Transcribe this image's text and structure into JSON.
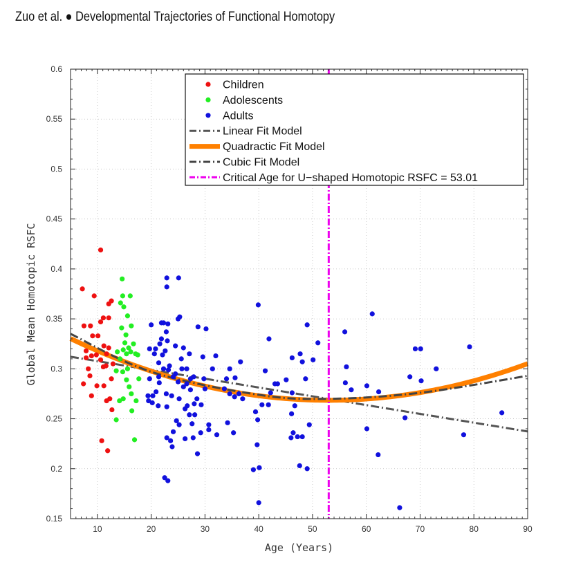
{
  "header": {
    "authors": "Zuo et al.",
    "bullet": "●",
    "title": "Developmental Trajectories of Functional Homotopy"
  },
  "chart_data": {
    "type": "scatter",
    "xlabel": "Age (Years)",
    "ylabel": "Global Mean Homotopic RSFC",
    "xlim": [
      5,
      90
    ],
    "ylim": [
      0.15,
      0.6
    ],
    "xticks": [
      10,
      20,
      30,
      40,
      50,
      60,
      70,
      80,
      90
    ],
    "yticks": [
      0.15,
      0.2,
      0.25,
      0.3,
      0.35,
      0.4,
      0.45,
      0.5,
      0.55,
      0.6
    ],
    "ytick_labels": [
      "0.15",
      "0.2",
      "0.25",
      "0.3",
      "0.35",
      "0.4",
      "0.45",
      "0.5",
      "0.55",
      "0.6"
    ],
    "grid": true,
    "legend_position": "top-right",
    "colors": {
      "children": "#ee1111",
      "adolescents": "#22ee22",
      "adults": "#1111dd",
      "linear": "#555555",
      "quadratic": "#ff8000",
      "cubic": "#444444",
      "critical": "#ee00ee"
    },
    "series": [
      {
        "name": "Children",
        "points": [
          [
            7.2,
            0.38
          ],
          [
            10.6,
            0.419
          ],
          [
            9.4,
            0.373
          ],
          [
            12.6,
            0.368
          ],
          [
            11.1,
            0.351
          ],
          [
            12.1,
            0.365
          ],
          [
            7.5,
            0.343
          ],
          [
            8.7,
            0.343
          ],
          [
            10.6,
            0.347
          ],
          [
            12.1,
            0.351
          ],
          [
            10.1,
            0.333
          ],
          [
            9.1,
            0.333
          ],
          [
            11.2,
            0.323
          ],
          [
            12.1,
            0.321
          ],
          [
            7.9,
            0.318
          ],
          [
            9.8,
            0.314
          ],
          [
            11.7,
            0.315
          ],
          [
            8.9,
            0.313
          ],
          [
            7.9,
            0.311
          ],
          [
            12.9,
            0.305
          ],
          [
            11.1,
            0.302
          ],
          [
            10.6,
            0.309
          ],
          [
            11.6,
            0.303
          ],
          [
            8.3,
            0.3
          ],
          [
            12.6,
            0.29
          ],
          [
            8.6,
            0.293
          ],
          [
            11.2,
            0.283
          ],
          [
            7.4,
            0.285
          ],
          [
            9.9,
            0.283
          ],
          [
            8.9,
            0.273
          ],
          [
            11.7,
            0.268
          ],
          [
            12.3,
            0.27
          ],
          [
            12.7,
            0.259
          ],
          [
            10.8,
            0.228
          ],
          [
            11.9,
            0.218
          ]
        ]
      },
      {
        "name": "Adolescents",
        "points": [
          [
            14.6,
            0.39
          ],
          [
            16.1,
            0.373
          ],
          [
            14.7,
            0.373
          ],
          [
            14.3,
            0.366
          ],
          [
            14.9,
            0.362
          ],
          [
            15.6,
            0.353
          ],
          [
            16.3,
            0.343
          ],
          [
            14.5,
            0.341
          ],
          [
            15.3,
            0.334
          ],
          [
            16.7,
            0.325
          ],
          [
            15.1,
            0.326
          ],
          [
            15.8,
            0.321
          ],
          [
            14.8,
            0.319
          ],
          [
            16.2,
            0.317
          ],
          [
            17.1,
            0.315
          ],
          [
            15.4,
            0.315
          ],
          [
            13.7,
            0.317
          ],
          [
            17.5,
            0.314
          ],
          [
            14.2,
            0.31
          ],
          [
            15.6,
            0.3
          ],
          [
            13.5,
            0.298
          ],
          [
            14.7,
            0.297
          ],
          [
            15.4,
            0.289
          ],
          [
            17.7,
            0.29
          ],
          [
            15.9,
            0.282
          ],
          [
            16.3,
            0.275
          ],
          [
            14.8,
            0.27
          ],
          [
            14.1,
            0.268
          ],
          [
            17.2,
            0.268
          ],
          [
            16.4,
            0.258
          ],
          [
            13.5,
            0.249
          ],
          [
            16.9,
            0.229
          ]
        ]
      },
      {
        "name": "Adults",
        "points": [
          [
            22.9,
            0.391
          ],
          [
            25.1,
            0.391
          ],
          [
            22.9,
            0.382
          ],
          [
            25.3,
            0.352
          ],
          [
            25.0,
            0.35
          ],
          [
            21.9,
            0.346
          ],
          [
            20.0,
            0.344
          ],
          [
            22.3,
            0.346
          ],
          [
            23.1,
            0.345
          ],
          [
            22.8,
            0.337
          ],
          [
            21.9,
            0.33
          ],
          [
            23.0,
            0.328
          ],
          [
            24.5,
            0.323
          ],
          [
            21.6,
            0.325
          ],
          [
            22.6,
            0.318
          ],
          [
            19.7,
            0.32
          ],
          [
            20.8,
            0.32
          ],
          [
            20.6,
            0.315
          ],
          [
            22.1,
            0.314
          ],
          [
            26.0,
            0.321
          ],
          [
            25.6,
            0.31
          ],
          [
            27.1,
            0.315
          ],
          [
            21.4,
            0.306
          ],
          [
            23.4,
            0.303
          ],
          [
            22.3,
            0.3
          ],
          [
            23.2,
            0.299
          ],
          [
            24.5,
            0.295
          ],
          [
            25.7,
            0.3
          ],
          [
            26.6,
            0.3
          ],
          [
            24.1,
            0.292
          ],
          [
            25.0,
            0.287
          ],
          [
            26.6,
            0.285
          ],
          [
            27.9,
            0.292
          ],
          [
            27.3,
            0.29
          ],
          [
            29.8,
            0.29
          ],
          [
            19.7,
            0.29
          ],
          [
            21.4,
            0.292
          ],
          [
            21.5,
            0.286
          ],
          [
            26.0,
            0.282
          ],
          [
            27.3,
            0.279
          ],
          [
            30.0,
            0.28
          ],
          [
            22.8,
            0.275
          ],
          [
            20.9,
            0.277
          ],
          [
            20.3,
            0.273
          ],
          [
            19.4,
            0.273
          ],
          [
            23.8,
            0.273
          ],
          [
            25.2,
            0.27
          ],
          [
            28.5,
            0.27
          ],
          [
            20.2,
            0.266
          ],
          [
            21.3,
            0.263
          ],
          [
            19.5,
            0.268
          ],
          [
            22.9,
            0.262
          ],
          [
            26.7,
            0.263
          ],
          [
            28.0,
            0.265
          ],
          [
            29.3,
            0.264
          ],
          [
            26.3,
            0.26
          ],
          [
            27.1,
            0.254
          ],
          [
            28.1,
            0.254
          ],
          [
            24.7,
            0.248
          ],
          [
            27.6,
            0.245
          ],
          [
            25.2,
            0.244
          ],
          [
            30.7,
            0.244
          ],
          [
            24.1,
            0.237
          ],
          [
            29.2,
            0.236
          ],
          [
            30.7,
            0.239
          ],
          [
            32.2,
            0.234
          ],
          [
            22.9,
            0.231
          ],
          [
            23.6,
            0.228
          ],
          [
            26.3,
            0.23
          ],
          [
            27.8,
            0.231
          ],
          [
            23.9,
            0.222
          ],
          [
            28.6,
            0.215
          ],
          [
            22.5,
            0.191
          ],
          [
            23.1,
            0.188
          ],
          [
            28.7,
            0.342
          ],
          [
            30.2,
            0.34
          ],
          [
            29.6,
            0.312
          ],
          [
            31.4,
            0.3
          ],
          [
            32.0,
            0.313
          ],
          [
            34.6,
            0.3
          ],
          [
            36.6,
            0.307
          ],
          [
            34.0,
            0.29
          ],
          [
            35.6,
            0.291
          ],
          [
            33.6,
            0.28
          ],
          [
            34.6,
            0.275
          ],
          [
            35.5,
            0.272
          ],
          [
            37.0,
            0.27
          ],
          [
            36.3,
            0.275
          ],
          [
            34.2,
            0.246
          ],
          [
            35.3,
            0.236
          ],
          [
            39.9,
            0.364
          ],
          [
            41.9,
            0.33
          ],
          [
            41.2,
            0.298
          ],
          [
            43.0,
            0.285
          ],
          [
            43.5,
            0.285
          ],
          [
            42.2,
            0.276
          ],
          [
            41.8,
            0.264
          ],
          [
            40.6,
            0.264
          ],
          [
            39.4,
            0.257
          ],
          [
            39.8,
            0.249
          ],
          [
            39.7,
            0.224
          ],
          [
            40.1,
            0.201
          ],
          [
            39.0,
            0.199
          ],
          [
            40.0,
            0.166
          ],
          [
            49.0,
            0.344
          ],
          [
            51.0,
            0.326
          ],
          [
            47.7,
            0.315
          ],
          [
            46.2,
            0.311
          ],
          [
            48.1,
            0.307
          ],
          [
            50.1,
            0.309
          ],
          [
            45.1,
            0.289
          ],
          [
            46.2,
            0.276
          ],
          [
            48.7,
            0.29
          ],
          [
            46.7,
            0.263
          ],
          [
            46.1,
            0.255
          ],
          [
            49.4,
            0.244
          ],
          [
            46.4,
            0.236
          ],
          [
            47.2,
            0.232
          ],
          [
            48.1,
            0.232
          ],
          [
            46.0,
            0.231
          ],
          [
            47.6,
            0.203
          ],
          [
            49.0,
            0.2
          ],
          [
            56.0,
            0.337
          ],
          [
            56.3,
            0.302
          ],
          [
            56.1,
            0.286
          ],
          [
            57.2,
            0.279
          ],
          [
            61.1,
            0.355
          ],
          [
            60.1,
            0.283
          ],
          [
            62.3,
            0.277
          ],
          [
            60.1,
            0.24
          ],
          [
            62.2,
            0.214
          ],
          [
            66.2,
            0.161
          ],
          [
            69.1,
            0.32
          ],
          [
            70.1,
            0.32
          ],
          [
            73.0,
            0.3
          ],
          [
            68.1,
            0.292
          ],
          [
            70.2,
            0.288
          ],
          [
            67.2,
            0.251
          ],
          [
            79.2,
            0.322
          ],
          [
            78.1,
            0.234
          ],
          [
            85.2,
            0.256
          ]
        ]
      }
    ],
    "fits": [
      {
        "name": "Linear Fit Model",
        "intercept": 0.3165,
        "slope": -0.00088
      },
      {
        "name": "Quadractic Fit Model",
        "vertex_x": 53.01,
        "vertex_y": 0.2685,
        "a": 2.68e-05
      },
      {
        "name": "Cubic Fit Model",
        "control_points": [
          [
            5,
            0.335
          ],
          [
            20,
            0.297
          ],
          [
            40,
            0.274
          ],
          [
            53,
            0.27
          ],
          [
            70,
            0.276
          ],
          [
            90,
            0.293
          ]
        ]
      }
    ],
    "critical_line": {
      "name": "Critical Age for U−shaped Homotopic RSFC = 53.01",
      "x": 53.01
    }
  }
}
